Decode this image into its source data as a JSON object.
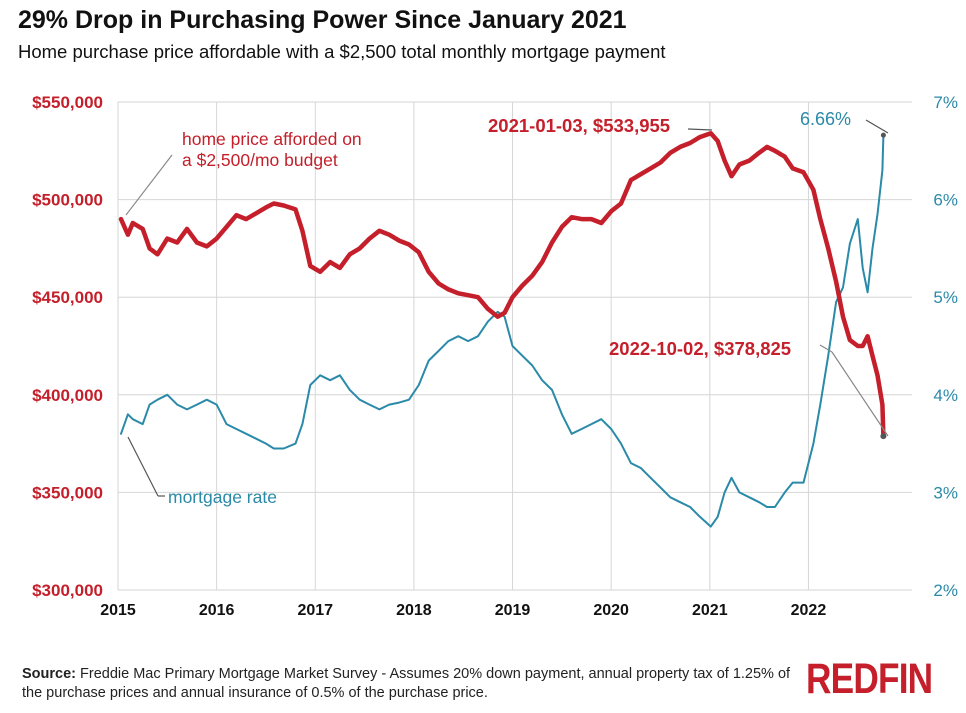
{
  "header": {
    "title": "29% Drop in Purchasing Power Since January 2021",
    "subtitle": "Home purchase price affordable with a $2,500 total monthly mortgage payment"
  },
  "footer": {
    "source_label": "Source:",
    "source_text": "Freddie Mac Primary Mortgage Market Survey - Assumes 20% down payment, annual property tax of 1.25% of the purchase prices and annual insurance of 0.5% of the purchase price.",
    "logo": "REDFIN"
  },
  "colors": {
    "price": "#c41f2a",
    "rate": "#2a8aa8",
    "grid": "#d6d6d6",
    "logo": "#c41f2a"
  },
  "chart_data": {
    "type": "line",
    "title": "29% Drop in Purchasing Power Since January 2021",
    "grid": true,
    "x_axis": {
      "min": 2015,
      "max": 2023.05,
      "ticks": [
        "2015",
        "2016",
        "2017",
        "2018",
        "2019",
        "2020",
        "2021",
        "2022"
      ]
    },
    "y_left": {
      "min": 300000,
      "max": 550000,
      "ticks": [
        "$300,000",
        "$350,000",
        "$400,000",
        "$450,000",
        "$500,000",
        "$550,000"
      ]
    },
    "y_right": {
      "min": 2,
      "max": 7,
      "ticks": [
        "2%",
        "3%",
        "4%",
        "5%",
        "6%",
        "7%"
      ]
    },
    "series": [
      {
        "name": "home price afforded on a $2,500/mo budget",
        "axis": "left",
        "points": [
          [
            2015.03,
            490000
          ],
          [
            2015.1,
            482000
          ],
          [
            2015.15,
            488000
          ],
          [
            2015.25,
            485000
          ],
          [
            2015.32,
            475000
          ],
          [
            2015.4,
            472000
          ],
          [
            2015.5,
            480000
          ],
          [
            2015.6,
            478000
          ],
          [
            2015.7,
            485000
          ],
          [
            2015.8,
            478000
          ],
          [
            2015.9,
            476000
          ],
          [
            2016.0,
            480000
          ],
          [
            2016.1,
            486000
          ],
          [
            2016.2,
            492000
          ],
          [
            2016.3,
            490000
          ],
          [
            2016.4,
            493000
          ],
          [
            2016.5,
            496000
          ],
          [
            2016.58,
            498000
          ],
          [
            2016.68,
            497000
          ],
          [
            2016.8,
            495000
          ],
          [
            2016.87,
            484000
          ],
          [
            2016.95,
            466000
          ],
          [
            2017.05,
            463000
          ],
          [
            2017.15,
            468000
          ],
          [
            2017.25,
            465000
          ],
          [
            2017.35,
            472000
          ],
          [
            2017.45,
            475000
          ],
          [
            2017.55,
            480000
          ],
          [
            2017.65,
            484000
          ],
          [
            2017.75,
            482000
          ],
          [
            2017.85,
            479000
          ],
          [
            2017.95,
            477000
          ],
          [
            2018.05,
            473000
          ],
          [
            2018.15,
            463000
          ],
          [
            2018.25,
            457000
          ],
          [
            2018.35,
            454000
          ],
          [
            2018.45,
            452000
          ],
          [
            2018.55,
            451000
          ],
          [
            2018.65,
            450000
          ],
          [
            2018.75,
            444000
          ],
          [
            2018.85,
            440000
          ],
          [
            2018.92,
            442000
          ],
          [
            2019.0,
            450000
          ],
          [
            2019.1,
            456000
          ],
          [
            2019.2,
            461000
          ],
          [
            2019.3,
            468000
          ],
          [
            2019.4,
            478000
          ],
          [
            2019.5,
            486000
          ],
          [
            2019.6,
            491000
          ],
          [
            2019.7,
            490000
          ],
          [
            2019.8,
            490000
          ],
          [
            2019.9,
            488000
          ],
          [
            2020.0,
            494000
          ],
          [
            2020.1,
            498000
          ],
          [
            2020.2,
            510000
          ],
          [
            2020.3,
            513000
          ],
          [
            2020.4,
            516000
          ],
          [
            2020.5,
            519000
          ],
          [
            2020.6,
            524000
          ],
          [
            2020.7,
            527000
          ],
          [
            2020.8,
            529000
          ],
          [
            2020.9,
            532000
          ],
          [
            2021.01,
            533955
          ],
          [
            2021.08,
            530000
          ],
          [
            2021.15,
            520000
          ],
          [
            2021.22,
            512000
          ],
          [
            2021.3,
            518000
          ],
          [
            2021.4,
            520000
          ],
          [
            2021.5,
            524000
          ],
          [
            2021.58,
            527000
          ],
          [
            2021.66,
            525000
          ],
          [
            2021.76,
            522000
          ],
          [
            2021.84,
            516000
          ],
          [
            2021.95,
            514000
          ],
          [
            2022.05,
            505000
          ],
          [
            2022.12,
            490000
          ],
          [
            2022.2,
            475000
          ],
          [
            2022.28,
            458000
          ],
          [
            2022.35,
            440000
          ],
          [
            2022.42,
            428000
          ],
          [
            2022.5,
            425000
          ],
          [
            2022.55,
            425000
          ],
          [
            2022.6,
            430000
          ],
          [
            2022.65,
            420000
          ],
          [
            2022.7,
            410000
          ],
          [
            2022.75,
            395000
          ],
          [
            2022.76,
            378825
          ]
        ]
      },
      {
        "name": "mortgage rate",
        "axis": "right",
        "points": [
          [
            2015.03,
            3.6
          ],
          [
            2015.1,
            3.8
          ],
          [
            2015.15,
            3.75
          ],
          [
            2015.25,
            3.7
          ],
          [
            2015.32,
            3.9
          ],
          [
            2015.4,
            3.95
          ],
          [
            2015.5,
            4.0
          ],
          [
            2015.6,
            3.9
          ],
          [
            2015.7,
            3.85
          ],
          [
            2015.8,
            3.9
          ],
          [
            2015.9,
            3.95
          ],
          [
            2016.0,
            3.9
          ],
          [
            2016.1,
            3.7
          ],
          [
            2016.2,
            3.65
          ],
          [
            2016.3,
            3.6
          ],
          [
            2016.4,
            3.55
          ],
          [
            2016.5,
            3.5
          ],
          [
            2016.58,
            3.45
          ],
          [
            2016.68,
            3.45
          ],
          [
            2016.8,
            3.5
          ],
          [
            2016.87,
            3.7
          ],
          [
            2016.95,
            4.1
          ],
          [
            2017.05,
            4.2
          ],
          [
            2017.15,
            4.15
          ],
          [
            2017.25,
            4.2
          ],
          [
            2017.35,
            4.05
          ],
          [
            2017.45,
            3.95
          ],
          [
            2017.55,
            3.9
          ],
          [
            2017.65,
            3.85
          ],
          [
            2017.75,
            3.9
          ],
          [
            2017.85,
            3.92
          ],
          [
            2017.95,
            3.95
          ],
          [
            2018.05,
            4.1
          ],
          [
            2018.15,
            4.35
          ],
          [
            2018.25,
            4.45
          ],
          [
            2018.35,
            4.55
          ],
          [
            2018.45,
            4.6
          ],
          [
            2018.55,
            4.55
          ],
          [
            2018.65,
            4.6
          ],
          [
            2018.75,
            4.75
          ],
          [
            2018.85,
            4.85
          ],
          [
            2018.92,
            4.8
          ],
          [
            2019.0,
            4.5
          ],
          [
            2019.1,
            4.4
          ],
          [
            2019.2,
            4.3
          ],
          [
            2019.3,
            4.15
          ],
          [
            2019.4,
            4.05
          ],
          [
            2019.5,
            3.8
          ],
          [
            2019.6,
            3.6
          ],
          [
            2019.7,
            3.65
          ],
          [
            2019.8,
            3.7
          ],
          [
            2019.9,
            3.75
          ],
          [
            2020.0,
            3.65
          ],
          [
            2020.1,
            3.5
          ],
          [
            2020.2,
            3.3
          ],
          [
            2020.3,
            3.25
          ],
          [
            2020.4,
            3.15
          ],
          [
            2020.5,
            3.05
          ],
          [
            2020.6,
            2.95
          ],
          [
            2020.7,
            2.9
          ],
          [
            2020.8,
            2.85
          ],
          [
            2020.9,
            2.75
          ],
          [
            2021.01,
            2.65
          ],
          [
            2021.08,
            2.75
          ],
          [
            2021.15,
            3.0
          ],
          [
            2021.22,
            3.15
          ],
          [
            2021.3,
            3.0
          ],
          [
            2021.4,
            2.95
          ],
          [
            2021.5,
            2.9
          ],
          [
            2021.58,
            2.85
          ],
          [
            2021.66,
            2.85
          ],
          [
            2021.76,
            3.0
          ],
          [
            2021.84,
            3.1
          ],
          [
            2021.95,
            3.1
          ],
          [
            2022.05,
            3.5
          ],
          [
            2022.12,
            3.9
          ],
          [
            2022.2,
            4.4
          ],
          [
            2022.28,
            4.95
          ],
          [
            2022.35,
            5.1
          ],
          [
            2022.42,
            5.55
          ],
          [
            2022.5,
            5.8
          ],
          [
            2022.55,
            5.3
          ],
          [
            2022.6,
            5.05
          ],
          [
            2022.65,
            5.5
          ],
          [
            2022.7,
            5.85
          ],
          [
            2022.75,
            6.3
          ],
          [
            2022.76,
            6.66
          ]
        ]
      }
    ],
    "annotations": {
      "price_label": "home price afforded on a $2,500/mo budget",
      "rate_label": "mortgage rate",
      "peak_label": "2021-01-03, $533,955",
      "end_price_label": "2022-10-02, $378,825",
      "end_rate_label": "6.66%"
    }
  }
}
